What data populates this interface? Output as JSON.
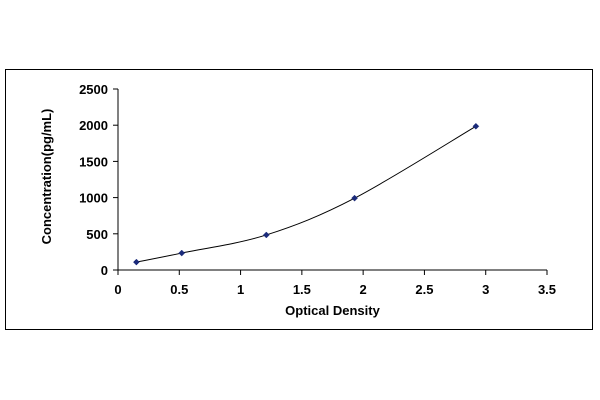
{
  "chart_data": {
    "type": "scatter",
    "title": "",
    "xlabel": "Optical Density",
    "ylabel": "Concentration(pg/mL)",
    "xlim": [
      0,
      3.5
    ],
    "ylim": [
      0,
      2500
    ],
    "x_ticks": [
      "0",
      "0.5",
      "1",
      "1.5",
      "2",
      "2.5",
      "3",
      "3.5"
    ],
    "y_ticks": [
      "0",
      "500",
      "1000",
      "1500",
      "2000",
      "2500"
    ],
    "grid": false,
    "legend": "none",
    "marker_color": "#1a2a7a",
    "line_color": "#000000",
    "series": [
      {
        "x": [
          0.15,
          0.52,
          1.21,
          1.93,
          2.92
        ],
        "y": [
          109,
          234,
          484,
          992,
          1985
        ]
      }
    ]
  }
}
